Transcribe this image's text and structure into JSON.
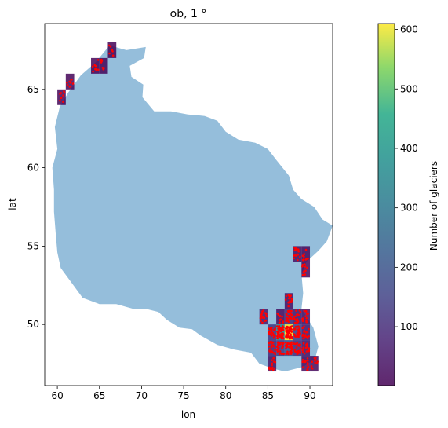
{
  "chart_data": {
    "type": "heatmap",
    "title": "ob, 1 °",
    "xlabel": "lon",
    "ylabel": "lat",
    "xlim": [
      58.5,
      92.7
    ],
    "ylim": [
      46.1,
      69.2
    ],
    "xticks": [
      60,
      65,
      70,
      75,
      80,
      85,
      90
    ],
    "yticks": [
      50,
      55,
      60,
      65
    ],
    "colorbar": {
      "label": "Number of glaciers",
      "range": [
        1,
        610
      ],
      "ticks": [
        100,
        200,
        300,
        400,
        500,
        600
      ],
      "colormap": "viridis"
    },
    "basin_color": "#8fbbd9",
    "glacier_point_color": "#ff0000",
    "cells": [
      {
        "lon": 66,
        "lat": 67,
        "count": 8
      },
      {
        "lon": 64,
        "lat": 66,
        "count": 12
      },
      {
        "lon": 65,
        "lat": 66,
        "count": 10
      },
      {
        "lon": 61,
        "lat": 65,
        "count": 10
      },
      {
        "lon": 60,
        "lat": 64,
        "count": 10
      },
      {
        "lon": 88,
        "lat": 54,
        "count": 40
      },
      {
        "lon": 89,
        "lat": 54,
        "count": 20
      },
      {
        "lon": 89,
        "lat": 53,
        "count": 15
      },
      {
        "lon": 87,
        "lat": 51,
        "count": 40
      },
      {
        "lon": 84,
        "lat": 50,
        "count": 60
      },
      {
        "lon": 86,
        "lat": 50,
        "count": 30
      },
      {
        "lon": 87,
        "lat": 50,
        "count": 100
      },
      {
        "lon": 88,
        "lat": 50,
        "count": 60
      },
      {
        "lon": 89,
        "lat": 50,
        "count": 40
      },
      {
        "lon": 85,
        "lat": 49,
        "count": 120
      },
      {
        "lon": 86,
        "lat": 49,
        "count": 350
      },
      {
        "lon": 87,
        "lat": 49,
        "count": 610
      },
      {
        "lon": 88,
        "lat": 49,
        "count": 150
      },
      {
        "lon": 89,
        "lat": 49,
        "count": 60
      },
      {
        "lon": 85,
        "lat": 48,
        "count": 90
      },
      {
        "lon": 86,
        "lat": 48,
        "count": 130
      },
      {
        "lon": 87,
        "lat": 48,
        "count": 200
      },
      {
        "lon": 88,
        "lat": 48,
        "count": 100
      },
      {
        "lon": 89,
        "lat": 48,
        "count": 50
      },
      {
        "lon": 85,
        "lat": 47,
        "count": 40
      },
      {
        "lon": 89,
        "lat": 47,
        "count": 30
      },
      {
        "lon": 90,
        "lat": 47,
        "count": 20
      }
    ]
  }
}
